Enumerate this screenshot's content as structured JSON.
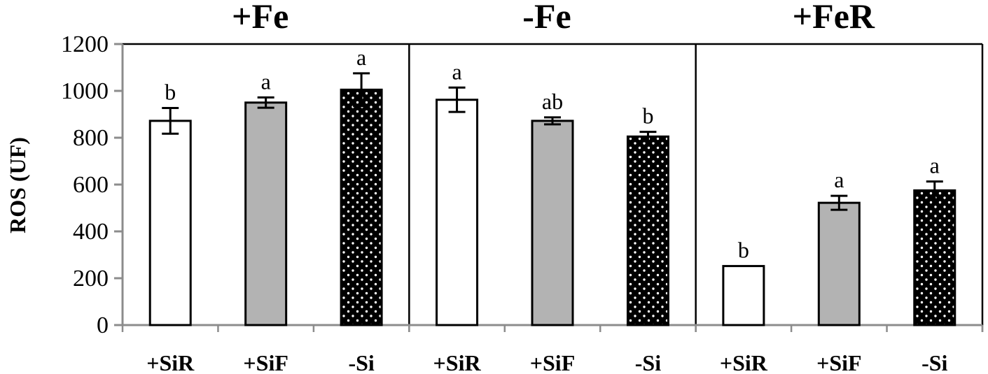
{
  "chart_data": {
    "type": "bar",
    "ylabel": "ROS (UF)",
    "ylim": [
      0,
      1200
    ],
    "yticks": [
      0,
      200,
      400,
      600,
      800,
      1000,
      1200
    ],
    "categories": [
      "+SiR",
      "+SiF",
      "-Si"
    ],
    "bar_styles": [
      {
        "name": "+SiR",
        "fill": "#ffffff",
        "pattern": "none"
      },
      {
        "name": "+SiF",
        "fill": "#b3b3b3",
        "pattern": "none"
      },
      {
        "name": "-Si",
        "fill": "#000000",
        "pattern": "white-dots"
      }
    ],
    "panels": [
      {
        "title": "+Fe",
        "values": [
          872,
          950,
          1005
        ],
        "errors": [
          55,
          22,
          70
        ],
        "labels": [
          "b",
          "a",
          "a"
        ]
      },
      {
        "title": "-Fe",
        "values": [
          962,
          872,
          805
        ],
        "errors": [
          52,
          15,
          20
        ],
        "labels": [
          "a",
          "ab",
          "b"
        ]
      },
      {
        "title": "+FeR",
        "values": [
          252,
          522,
          575
        ],
        "errors": [
          0,
          30,
          38
        ],
        "labels": [
          "b",
          "a",
          "a"
        ]
      }
    ],
    "grid": false,
    "legend": "none"
  }
}
